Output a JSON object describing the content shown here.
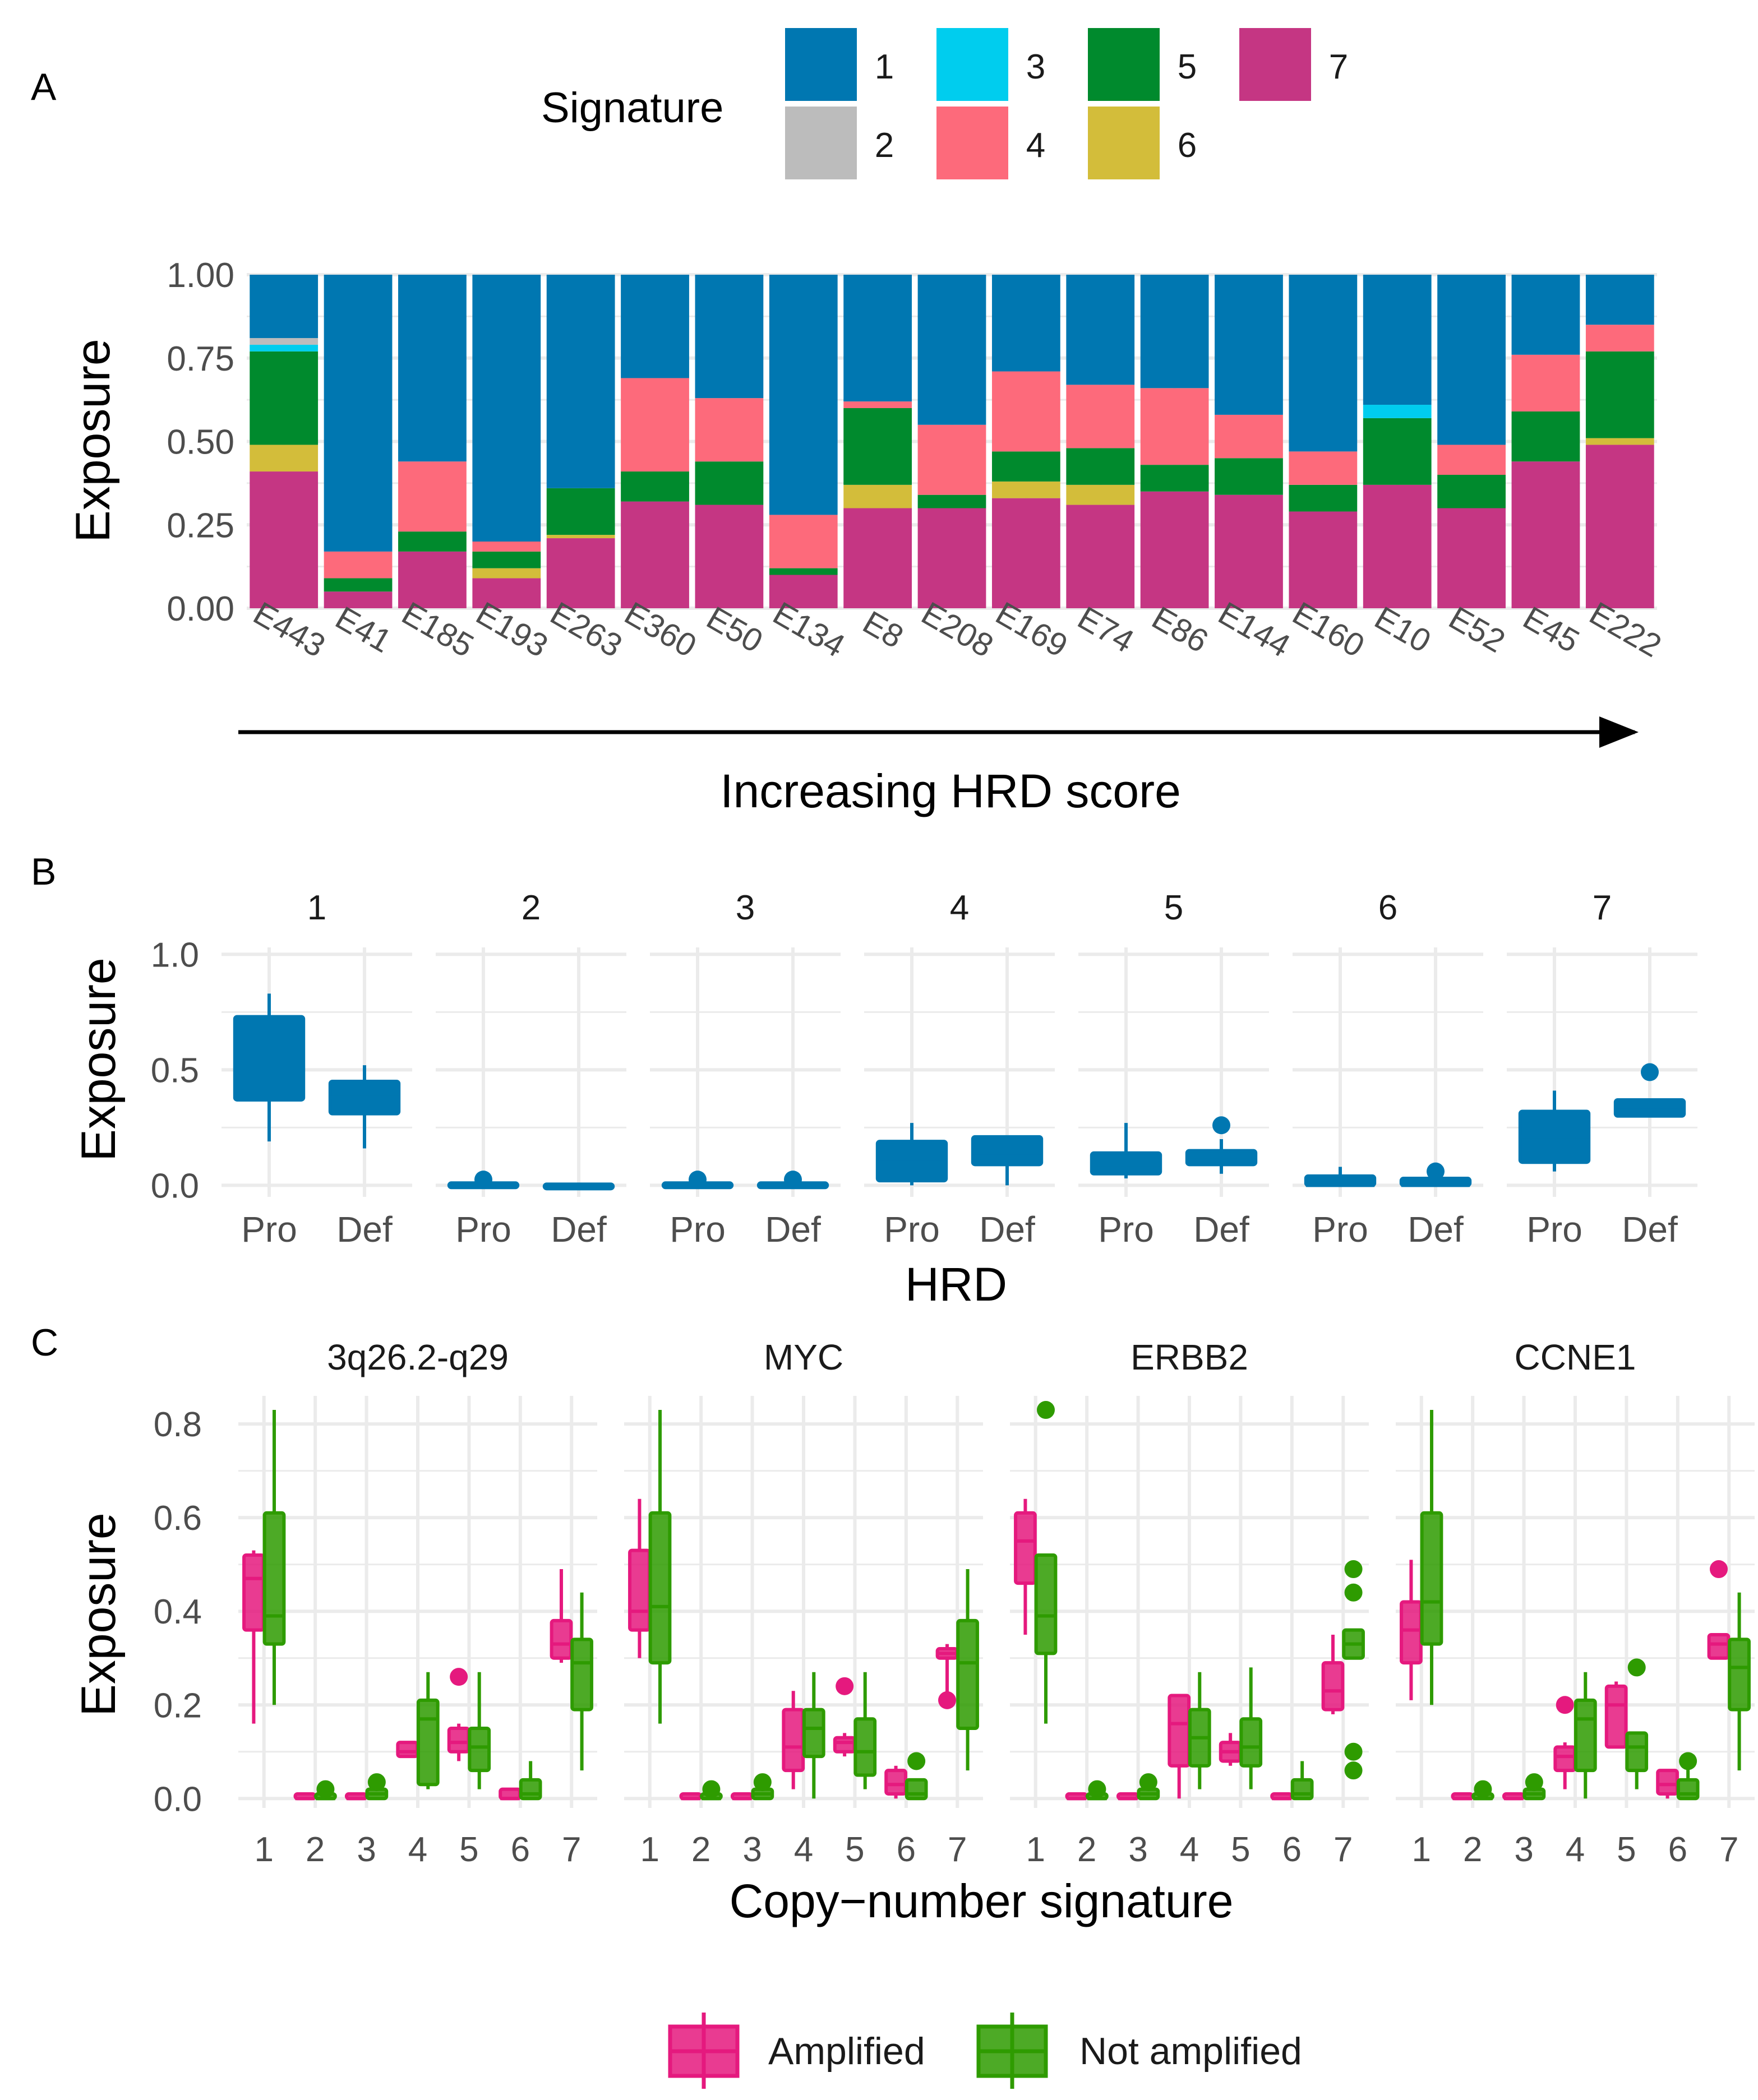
{
  "colors": {
    "sig1": "#0077B1",
    "sig2": "#BCBCBC",
    "sig3": "#00CDEE",
    "sig4": "#FD6A7B",
    "sig5": "#008A2D",
    "sig6": "#D3BD3A",
    "sig7": "#C53683",
    "amplified": "#E5197E",
    "not_amplified": "#2E9B00",
    "box_b": "#0077B1",
    "grid": "#EBEBEB",
    "text": "#1A1A1A",
    "tick": "#4D4D4D"
  },
  "chart_data": [
    {
      "panel": "A",
      "type": "bar",
      "stacked": true,
      "legend_title": "Signature",
      "legend_keys": [
        "1",
        "2",
        "3",
        "4",
        "5",
        "6",
        "7"
      ],
      "categories": [
        "E443",
        "E41",
        "E185",
        "E193",
        "E263",
        "E360",
        "E50",
        "E134",
        "E8",
        "E208",
        "E169",
        "E74",
        "E86",
        "E144",
        "E160",
        "E10",
        "E52",
        "E45",
        "E222"
      ],
      "series": [
        {
          "name": "7",
          "values": [
            0.41,
            0.05,
            0.17,
            0.09,
            0.21,
            0.32,
            0.31,
            0.1,
            0.3,
            0.3,
            0.33,
            0.31,
            0.35,
            0.34,
            0.29,
            0.37,
            0.3,
            0.44,
            0.49
          ]
        },
        {
          "name": "6",
          "values": [
            0.08,
            0,
            0,
            0.03,
            0.01,
            0,
            0,
            0,
            0.07,
            0,
            0.05,
            0.06,
            0,
            0,
            0,
            0,
            0,
            0,
            0.02
          ]
        },
        {
          "name": "5",
          "values": [
            0.28,
            0.04,
            0.06,
            0.05,
            0.14,
            0.09,
            0.13,
            0.02,
            0.23,
            0.04,
            0.09,
            0.11,
            0.08,
            0.11,
            0.08,
            0.2,
            0.1,
            0.15,
            0.26
          ]
        },
        {
          "name": "4",
          "values": [
            0,
            0.08,
            0.21,
            0.03,
            0,
            0.28,
            0.19,
            0.16,
            0.02,
            0.21,
            0.24,
            0.19,
            0.23,
            0.13,
            0.1,
            0,
            0.09,
            0.17,
            0.08
          ]
        },
        {
          "name": "3",
          "values": [
            0.02,
            0,
            0,
            0,
            0,
            0,
            0,
            0,
            0,
            0,
            0,
            0,
            0,
            0,
            0,
            0.04,
            0,
            0,
            0
          ]
        },
        {
          "name": "2",
          "values": [
            0.02,
            0,
            0,
            0,
            0,
            0,
            0,
            0,
            0,
            0,
            0,
            0,
            0,
            0,
            0,
            0,
            0,
            0,
            0
          ]
        },
        {
          "name": "1",
          "values": [
            0.19,
            0.83,
            0.56,
            0.8,
            0.64,
            0.31,
            0.37,
            0.72,
            0.38,
            0.45,
            0.29,
            0.33,
            0.34,
            0.42,
            0.53,
            0.39,
            0.51,
            0.24,
            0.15
          ]
        }
      ],
      "ylabel": "Exposure",
      "xlabel": "Increasing HRD score",
      "ylim": [
        0,
        1
      ],
      "yticks": [
        "0.00",
        "0.25",
        "0.50",
        "0.75",
        "1.00"
      ]
    },
    {
      "panel": "B",
      "type": "box",
      "facets": [
        "1",
        "2",
        "3",
        "4",
        "5",
        "6",
        "7"
      ],
      "groups": [
        "Pro",
        "Def"
      ],
      "xlabel": "HRD",
      "ylabel": "Exposure",
      "ylim": [
        -0.05,
        1.03
      ],
      "yticks": [
        "0.0",
        "0.5",
        "1.0"
      ],
      "boxes": [
        [
          {
            "lo": 0.19,
            "q1": 0.37,
            "med": 0.57,
            "q3": 0.73,
            "hi": 0.83,
            "out": []
          },
          {
            "lo": 0.16,
            "q1": 0.31,
            "med": 0.38,
            "q3": 0.45,
            "hi": 0.52,
            "out": []
          }
        ],
        [
          {
            "lo": 0,
            "q1": 0,
            "med": 0,
            "q3": 0.01,
            "hi": 0.02,
            "out": [
              0.025
            ]
          },
          {
            "lo": 0,
            "q1": 0,
            "med": 0,
            "q3": 0.005,
            "hi": 0.01,
            "out": []
          }
        ],
        [
          {
            "lo": 0,
            "q1": 0,
            "med": 0,
            "q3": 0.01,
            "hi": 0.02,
            "out": [
              0.025
            ]
          },
          {
            "lo": 0,
            "q1": 0,
            "med": 0,
            "q3": 0.01,
            "hi": 0.02,
            "out": [
              0.025
            ]
          }
        ],
        [
          {
            "lo": 0,
            "q1": 0.02,
            "med": 0.1,
            "q3": 0.19,
            "hi": 0.27,
            "out": []
          },
          {
            "lo": 0,
            "q1": 0.09,
            "med": 0.14,
            "q3": 0.21,
            "hi": 0.21,
            "out": []
          }
        ],
        [
          {
            "lo": 0.03,
            "q1": 0.05,
            "med": 0.09,
            "q3": 0.14,
            "hi": 0.27,
            "out": []
          },
          {
            "lo": 0.05,
            "q1": 0.09,
            "med": 0.11,
            "q3": 0.15,
            "hi": 0.2,
            "out": [
              0.26
            ]
          }
        ],
        [
          {
            "lo": 0,
            "q1": 0,
            "med": 0,
            "q3": 0.04,
            "hi": 0.08,
            "out": []
          },
          {
            "lo": 0,
            "q1": 0,
            "med": 0,
            "q3": 0.03,
            "hi": 0.03,
            "out": [
              0.06
            ]
          }
        ],
        [
          {
            "lo": 0.06,
            "q1": 0.1,
            "med": 0.21,
            "q3": 0.32,
            "hi": 0.41,
            "out": []
          },
          {
            "lo": 0.3,
            "q1": 0.3,
            "med": 0.34,
            "q3": 0.37,
            "hi": 0.37,
            "out": [
              0.49
            ]
          }
        ]
      ]
    },
    {
      "panel": "C",
      "type": "box",
      "facets": [
        "3q26.2-q29",
        "MYC",
        "ERBB2",
        "CCNE1"
      ],
      "categories": [
        "1",
        "2",
        "3",
        "4",
        "5",
        "6",
        "7"
      ],
      "groups": [
        "Amplified",
        "Not amplified"
      ],
      "xlabel": "Copy−number signature",
      "ylabel": "Exposure",
      "ylim": [
        -0.02,
        0.86
      ],
      "yticks": [
        "0.0",
        "0.2",
        "0.4",
        "0.6",
        "0.8"
      ],
      "boxes": [
        [
          [
            {
              "lo": 0.16,
              "q1": 0.36,
              "med": 0.47,
              "q3": 0.52,
              "hi": 0.53,
              "out": []
            },
            {
              "lo": 0.2,
              "q1": 0.33,
              "med": 0.39,
              "q3": 0.61,
              "hi": 0.83,
              "out": []
            }
          ],
          [
            {
              "lo": 0,
              "q1": 0,
              "med": 0,
              "q3": 0.01,
              "hi": 0.01,
              "out": []
            },
            {
              "lo": 0,
              "q1": 0,
              "med": 0,
              "q3": 0.01,
              "hi": 0.02,
              "out": [
                0.02
              ]
            }
          ],
          [
            {
              "lo": 0,
              "q1": 0,
              "med": 0,
              "q3": 0.01,
              "hi": 0.01,
              "out": []
            },
            {
              "lo": 0,
              "q1": 0,
              "med": 0.01,
              "q3": 0.02,
              "hi": 0.02,
              "out": [
                0.035
              ]
            }
          ],
          [
            {
              "lo": 0.09,
              "q1": 0.09,
              "med": 0.1,
              "q3": 0.12,
              "hi": 0.12,
              "out": []
            },
            {
              "lo": 0.02,
              "q1": 0.03,
              "med": 0.17,
              "q3": 0.21,
              "hi": 0.27,
              "out": []
            }
          ],
          [
            {
              "lo": 0.08,
              "q1": 0.1,
              "med": 0.12,
              "q3": 0.15,
              "hi": 0.16,
              "out": [
                0.26
              ]
            },
            {
              "lo": 0.02,
              "q1": 0.06,
              "med": 0.11,
              "q3": 0.15,
              "hi": 0.27,
              "out": []
            }
          ],
          [
            {
              "lo": 0,
              "q1": 0,
              "med": 0,
              "q3": 0.02,
              "hi": 0.02,
              "out": []
            },
            {
              "lo": 0,
              "q1": 0,
              "med": 0.01,
              "q3": 0.04,
              "hi": 0.08,
              "out": []
            }
          ],
          [
            {
              "lo": 0.29,
              "q1": 0.3,
              "med": 0.33,
              "q3": 0.38,
              "hi": 0.49,
              "out": []
            },
            {
              "lo": 0.06,
              "q1": 0.19,
              "med": 0.29,
              "q3": 0.34,
              "hi": 0.44,
              "out": []
            }
          ]
        ],
        [
          [
            {
              "lo": 0.3,
              "q1": 0.36,
              "med": 0.4,
              "q3": 0.53,
              "hi": 0.64,
              "out": []
            },
            {
              "lo": 0.16,
              "q1": 0.29,
              "med": 0.41,
              "q3": 0.61,
              "hi": 0.83,
              "out": []
            }
          ],
          [
            {
              "lo": 0,
              "q1": 0,
              "med": 0,
              "q3": 0.01,
              "hi": 0.01,
              "out": []
            },
            {
              "lo": 0,
              "q1": 0,
              "med": 0,
              "q3": 0.01,
              "hi": 0.02,
              "out": [
                0.02
              ]
            }
          ],
          [
            {
              "lo": 0,
              "q1": 0,
              "med": 0,
              "q3": 0.01,
              "hi": 0.01,
              "out": []
            },
            {
              "lo": 0,
              "q1": 0,
              "med": 0.01,
              "q3": 0.02,
              "hi": 0.02,
              "out": [
                0.035
              ]
            }
          ],
          [
            {
              "lo": 0.02,
              "q1": 0.06,
              "med": 0.11,
              "q3": 0.19,
              "hi": 0.23,
              "out": []
            },
            {
              "lo": 0,
              "q1": 0.09,
              "med": 0.15,
              "q3": 0.19,
              "hi": 0.27,
              "out": []
            }
          ],
          [
            {
              "lo": 0.09,
              "q1": 0.1,
              "med": 0.12,
              "q3": 0.13,
              "hi": 0.14,
              "out": [
                0.24
              ]
            },
            {
              "lo": 0.02,
              "q1": 0.05,
              "med": 0.1,
              "q3": 0.17,
              "hi": 0.27,
              "out": []
            }
          ],
          [
            {
              "lo": 0,
              "q1": 0.01,
              "med": 0.03,
              "q3": 0.06,
              "hi": 0.07,
              "out": []
            },
            {
              "lo": 0,
              "q1": 0,
              "med": 0.01,
              "q3": 0.04,
              "hi": 0.04,
              "out": [
                0.08
              ]
            }
          ],
          [
            {
              "lo": 0.21,
              "q1": 0.3,
              "med": 0.31,
              "q3": 0.32,
              "hi": 0.33,
              "out": [
                0.21
              ]
            },
            {
              "lo": 0.06,
              "q1": 0.15,
              "med": 0.29,
              "q3": 0.38,
              "hi": 0.49,
              "out": []
            }
          ]
        ],
        [
          [
            {
              "lo": 0.35,
              "q1": 0.46,
              "med": 0.55,
              "q3": 0.61,
              "hi": 0.64,
              "out": []
            },
            {
              "lo": 0.16,
              "q1": 0.31,
              "med": 0.39,
              "q3": 0.52,
              "hi": 0.52,
              "out": [
                0.83
              ]
            }
          ],
          [
            {
              "lo": 0,
              "q1": 0,
              "med": 0,
              "q3": 0.01,
              "hi": 0.01,
              "out": []
            },
            {
              "lo": 0,
              "q1": 0,
              "med": 0,
              "q3": 0.01,
              "hi": 0.02,
              "out": [
                0.02
              ]
            }
          ],
          [
            {
              "lo": 0,
              "q1": 0,
              "med": 0,
              "q3": 0.01,
              "hi": 0.01,
              "out": []
            },
            {
              "lo": 0,
              "q1": 0,
              "med": 0.01,
              "q3": 0.02,
              "hi": 0.02,
              "out": [
                0.035
              ]
            }
          ],
          [
            {
              "lo": 0,
              "q1": 0.07,
              "med": 0.16,
              "q3": 0.22,
              "hi": 0.22,
              "out": []
            },
            {
              "lo": 0.02,
              "q1": 0.07,
              "med": 0.13,
              "q3": 0.19,
              "hi": 0.27,
              "out": []
            }
          ],
          [
            {
              "lo": 0.07,
              "q1": 0.08,
              "med": 0.1,
              "q3": 0.12,
              "hi": 0.14,
              "out": []
            },
            {
              "lo": 0.02,
              "q1": 0.07,
              "med": 0.11,
              "q3": 0.17,
              "hi": 0.28,
              "out": []
            }
          ],
          [
            {
              "lo": 0,
              "q1": 0,
              "med": 0,
              "q3": 0.01,
              "hi": 0.01,
              "out": []
            },
            {
              "lo": 0,
              "q1": 0,
              "med": 0.01,
              "q3": 0.04,
              "hi": 0.08,
              "out": []
            }
          ],
          [
            {
              "lo": 0.18,
              "q1": 0.19,
              "med": 0.23,
              "q3": 0.29,
              "hi": 0.35,
              "out": []
            },
            {
              "lo": 0.3,
              "q1": 0.3,
              "med": 0.33,
              "q3": 0.36,
              "hi": 0.36,
              "out": [
                0.49,
                0.44,
                0.1,
                0.06
              ]
            }
          ]
        ],
        [
          [
            {
              "lo": 0.21,
              "q1": 0.29,
              "med": 0.36,
              "q3": 0.42,
              "hi": 0.51,
              "out": []
            },
            {
              "lo": 0.2,
              "q1": 0.33,
              "med": 0.42,
              "q3": 0.61,
              "hi": 0.83,
              "out": []
            }
          ],
          [
            {
              "lo": 0,
              "q1": 0,
              "med": 0,
              "q3": 0.01,
              "hi": 0.01,
              "out": []
            },
            {
              "lo": 0,
              "q1": 0,
              "med": 0,
              "q3": 0.01,
              "hi": 0.02,
              "out": [
                0.02
              ]
            }
          ],
          [
            {
              "lo": 0,
              "q1": 0,
              "med": 0,
              "q3": 0.01,
              "hi": 0.01,
              "out": []
            },
            {
              "lo": 0,
              "q1": 0,
              "med": 0.01,
              "q3": 0.02,
              "hi": 0.02,
              "out": [
                0.035
              ]
            }
          ],
          [
            {
              "lo": 0.02,
              "q1": 0.06,
              "med": 0.09,
              "q3": 0.11,
              "hi": 0.12,
              "out": [
                0.2
              ]
            },
            {
              "lo": 0,
              "q1": 0.06,
              "med": 0.17,
              "q3": 0.21,
              "hi": 0.27,
              "out": []
            }
          ],
          [
            {
              "lo": 0.11,
              "q1": 0.11,
              "med": 0.2,
              "q3": 0.24,
              "hi": 0.25,
              "out": []
            },
            {
              "lo": 0.02,
              "q1": 0.06,
              "med": 0.11,
              "q3": 0.14,
              "hi": 0.14,
              "out": [
                0.28
              ]
            }
          ],
          [
            {
              "lo": 0,
              "q1": 0.01,
              "med": 0.03,
              "q3": 0.06,
              "hi": 0.06,
              "out": []
            },
            {
              "lo": 0,
              "q1": 0,
              "med": 0.01,
              "q3": 0.04,
              "hi": 0.08,
              "out": [
                0.08
              ]
            }
          ],
          [
            {
              "lo": 0.3,
              "q1": 0.3,
              "med": 0.33,
              "q3": 0.35,
              "hi": 0.35,
              "out": [
                0.49
              ]
            },
            {
              "lo": 0.06,
              "q1": 0.19,
              "med": 0.28,
              "q3": 0.34,
              "hi": 0.44,
              "out": []
            }
          ]
        ]
      ],
      "legend_keys": [
        "Amplified",
        "Not amplified"
      ]
    }
  ],
  "panel_labels": [
    "A",
    "B",
    "C"
  ]
}
